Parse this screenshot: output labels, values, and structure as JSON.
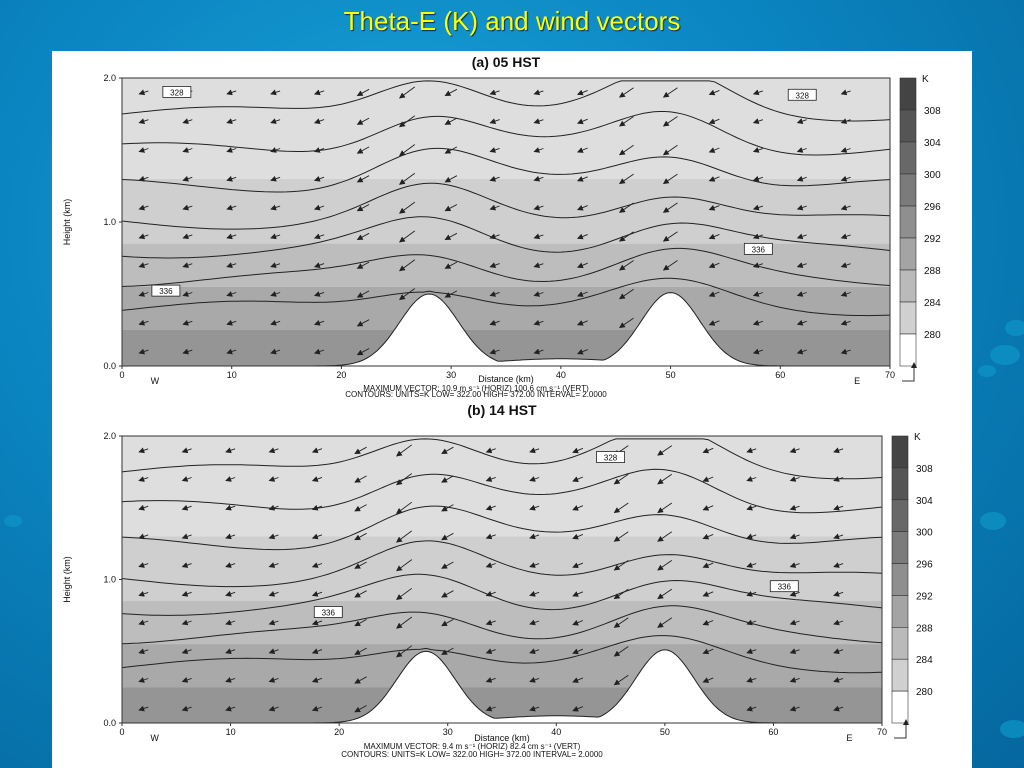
{
  "slide": {
    "title": "Theta-E (K) and  wind vectors"
  },
  "chart_data": [
    {
      "type": "contour",
      "title": "(a) 05 HST",
      "xlabel": "Distance (km)",
      "ylabel": "Height (km)",
      "xlim": [
        0,
        70
      ],
      "ylim": [
        0,
        2
      ],
      "x_ticks": [
        "0",
        "10",
        "20",
        "30",
        "40",
        "50",
        "60",
        "70"
      ],
      "y_ticks": [
        "0.0",
        "1.0",
        "2.0"
      ],
      "direction_labels": {
        "west": "W",
        "east": "E"
      },
      "colorbar": {
        "unit": "K",
        "levels": [
          "308",
          "304",
          "300",
          "296",
          "292",
          "288",
          "284",
          "280"
        ]
      },
      "contour_labels": [
        "328",
        "328",
        "336",
        "336"
      ],
      "footer_line1": "MAXIMUM VECTOR:     10.9  m s⁻¹ (HORIZ)          100.6  cm s⁻¹ (VERT)",
      "footer_line2": "CONTOURS:   UNITS=K   LOW=     322.00     HIGH=   372.00      INTERVAL=     2.0000",
      "terrain_peaks_km": [
        28,
        50
      ]
    },
    {
      "type": "contour",
      "title": "(b) 14 HST",
      "xlabel": "Distance (km)",
      "ylabel": "Height (km)",
      "xlim": [
        0,
        70
      ],
      "ylim": [
        0,
        2
      ],
      "x_ticks": [
        "0",
        "10",
        "20",
        "30",
        "40",
        "50",
        "60",
        "70"
      ],
      "y_ticks": [
        "0.0",
        "1.0",
        "2.0"
      ],
      "direction_labels": {
        "west": "W",
        "east": "E"
      },
      "colorbar": {
        "unit": "K",
        "levels": [
          "308",
          "304",
          "300",
          "296",
          "292",
          "288",
          "284",
          "280"
        ]
      },
      "contour_labels": [
        "328",
        "336",
        "336"
      ],
      "footer_line1": "MAXIMUM VECTOR:     9.4  m s⁻¹ (HORIZ)          82.4  cm s⁻¹ (VERT)",
      "footer_line2": "CONTOURS:   UNITS=K   LOW=     322.00     HIGH=   372.00      INTERVAL=     2.0000",
      "terrain_peaks_km": [
        28,
        50
      ]
    }
  ]
}
